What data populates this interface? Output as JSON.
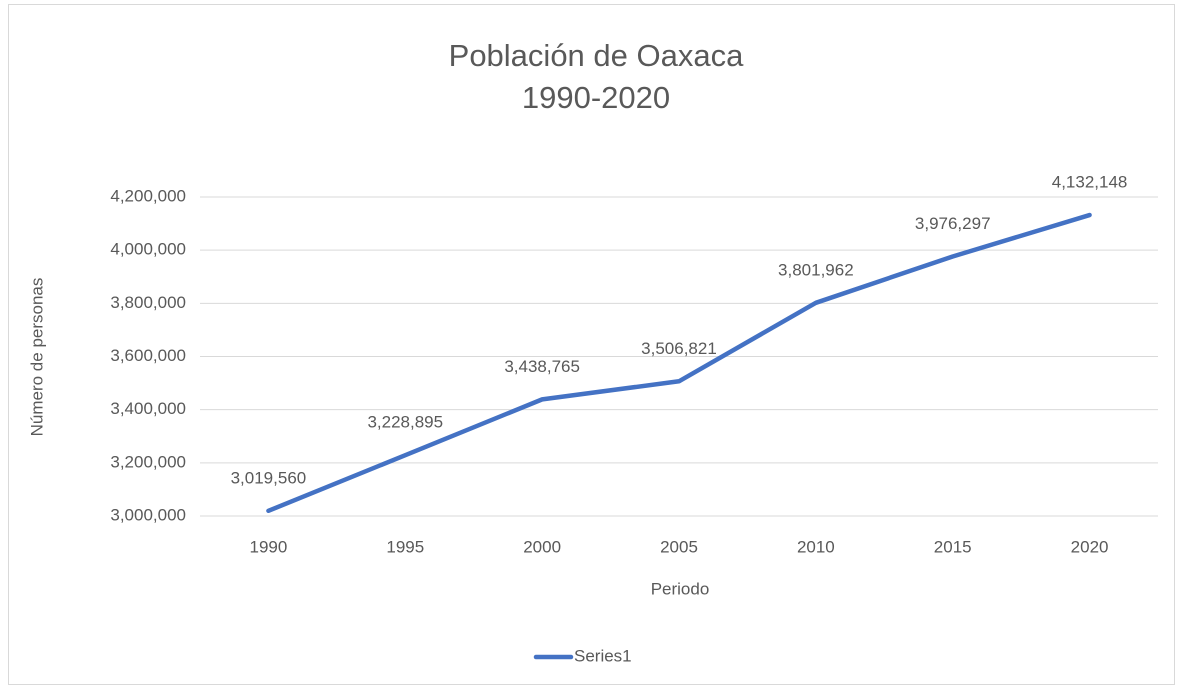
{
  "chart_data": {
    "type": "line",
    "title": "Población de Oaxaca",
    "subtitle": "1990-2020",
    "x_label": "Periodo",
    "y_label": "Número de personas",
    "categories": [
      "1990",
      "1995",
      "2000",
      "2005",
      "2010",
      "2015",
      "2020"
    ],
    "series": [
      {
        "name": "Series1",
        "color": "#4472c4",
        "values": [
          3019560,
          3228895,
          3438765,
          3506821,
          3801962,
          3976297,
          4132148
        ],
        "value_labels": [
          "3,019,560",
          "3,228,895",
          "3,438,765",
          "3,506,821",
          "3,801,962",
          "3,976,297",
          "4,132,148"
        ]
      }
    ],
    "ylim": [
      3000000,
      4200000
    ],
    "yticks": [
      {
        "value": 3000000,
        "label": "3,000,000"
      },
      {
        "value": 3200000,
        "label": "3,200,000"
      },
      {
        "value": 3400000,
        "label": "3,400,000"
      },
      {
        "value": 3600000,
        "label": "3,600,000"
      },
      {
        "value": 3800000,
        "label": "3,800,000"
      },
      {
        "value": 4000000,
        "label": "4,000,000"
      },
      {
        "value": 4200000,
        "label": "4,200,000"
      }
    ],
    "grid": true,
    "legend": "bottom"
  }
}
